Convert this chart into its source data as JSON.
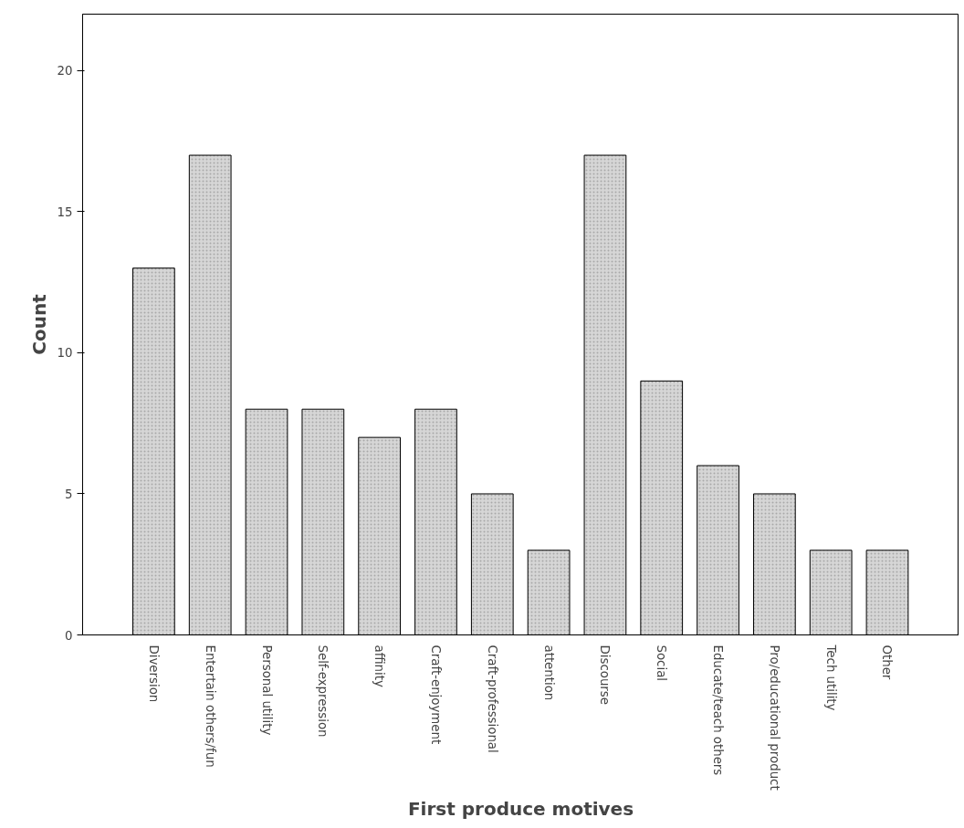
{
  "chart_data": {
    "type": "bar",
    "xlabel": "First produce motives",
    "ylabel": "Count",
    "categories": [
      "Diversion",
      "Entertain others/fun",
      "Personal utility",
      "Self-expression",
      "affinity",
      "Craft-enjoyment",
      "Craft-professional",
      "attention",
      "Discourse",
      "Social",
      "Educate/teach others",
      "Pro/educational product",
      "Tech utility",
      "Other"
    ],
    "values": [
      13,
      17,
      8,
      8,
      7,
      8,
      5,
      3,
      17,
      9,
      6,
      5,
      3,
      3
    ],
    "color": "#d6d6d6",
    "ylim": [
      0,
      22
    ],
    "yticks": [
      0,
      5,
      10,
      15,
      20
    ],
    "grid": false
  }
}
